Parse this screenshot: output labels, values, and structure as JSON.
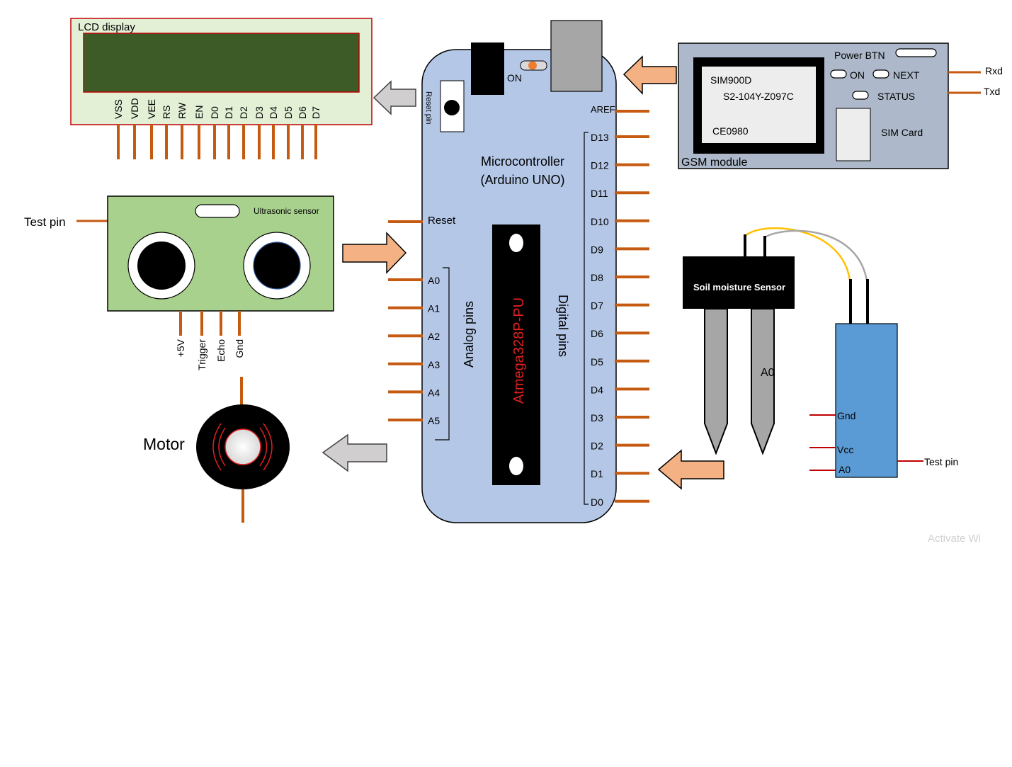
{
  "lcd": {
    "title": "LCD display",
    "pins": [
      "VSS",
      "VDD",
      "VEE",
      "RS",
      "RW",
      "EN",
      "D0",
      "D1",
      "D2",
      "D3",
      "D4",
      "D5",
      "D6",
      "D7"
    ],
    "screen_color": "#3d5b27",
    "body_color": "#e3f0d6"
  },
  "arduino": {
    "title_line1": "Microcontroller",
    "title_line2": "(Arduino UNO)",
    "on_label": "ON",
    "reset_pin_label": "Reset pin",
    "reset_label": "Reset",
    "aref_label": "AREF",
    "digital_pins": [
      "D13",
      "D12",
      "D11",
      "D10",
      "D9",
      "D8",
      "D7",
      "D6",
      "D5",
      "D4",
      "D3",
      "D2",
      "D1",
      "D0"
    ],
    "analog_pins": [
      "A0",
      "A1",
      "A2",
      "A3",
      "A4",
      "A5"
    ],
    "analog_group_label": "Analog pins",
    "digital_group_label": "Digital pins",
    "chip_label": "Atmega328P-PU",
    "board_color": "#b4c7e7",
    "chip_text_color": "#e02020"
  },
  "gsm": {
    "title": "GSM module",
    "power_btn": "Power BTN",
    "on": "ON",
    "next": "NEXT",
    "status": "STATUS",
    "sim_card": "SIM Card",
    "chip_line1": "SIM900D",
    "chip_line2": "S2-104Y-Z097C",
    "chip_line3": "CE0980",
    "rxd": "Rxd",
    "txd": "Txd",
    "body_color": "#adb9ca"
  },
  "ultrasonic": {
    "title": "Ultrasonic sensor",
    "test_pin": "Test pin",
    "pins": [
      "+5V",
      "Trigger",
      "Echo",
      "Gnd"
    ],
    "body_color": "#a9d18e"
  },
  "motor": {
    "label": "Motor"
  },
  "soil": {
    "label": "Soil moisture Sensor",
    "probe_label": "A0",
    "module_pins": [
      "Gnd",
      "Vcc",
      "A0"
    ],
    "test_pin": "Test pin",
    "module_color": "#5b9bd5"
  },
  "watermark": "Activate Wi",
  "colors": {
    "pin": "#c55a11",
    "arrow_orange": "#f4b183",
    "arrow_gray": "#d0cece"
  }
}
